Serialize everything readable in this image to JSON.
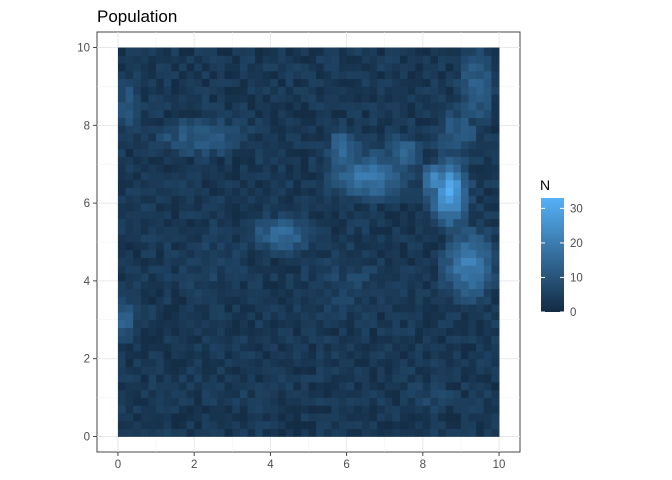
{
  "chart_data": {
    "type": "heatmap",
    "title": "Population",
    "xlabel": "",
    "ylabel": "",
    "xlim": [
      -0.55,
      10.55
    ],
    "ylim": [
      -0.4,
      10.4
    ],
    "x_ticks": [
      0,
      2,
      4,
      6,
      8,
      10
    ],
    "y_ticks": [
      0,
      2,
      4,
      6,
      8,
      10
    ],
    "x_tick_labels": [
      "0",
      "2",
      "4",
      "6",
      "8",
      "10"
    ],
    "y_tick_labels": [
      "0",
      "2",
      "4",
      "6",
      "8",
      "10"
    ],
    "grid": true,
    "grid_resolution": 0.2,
    "x_range": [
      0,
      10
    ],
    "y_range": [
      0,
      10
    ],
    "color_scale": {
      "low_color": "#132B43",
      "high_color": "#56B1F7",
      "min": 0,
      "max": 33
    },
    "regions": [
      {
        "center": [
          8.7,
          6.3
        ],
        "spread": [
          0.45,
          0.8
        ],
        "value": 30
      },
      {
        "center": [
          8.3,
          6.6
        ],
        "spread": [
          0.3,
          0.4
        ],
        "value": 26
      },
      {
        "center": [
          9.2,
          4.4
        ],
        "spread": [
          0.65,
          0.9
        ],
        "value": 20
      },
      {
        "center": [
          6.6,
          6.7
        ],
        "spread": [
          1.0,
          0.6
        ],
        "value": 19
      },
      {
        "center": [
          5.9,
          7.4
        ],
        "spread": [
          0.4,
          0.5
        ],
        "value": 17
      },
      {
        "center": [
          7.5,
          7.3
        ],
        "spread": [
          0.45,
          0.45
        ],
        "value": 16
      },
      {
        "center": [
          4.3,
          5.2
        ],
        "spread": [
          0.9,
          0.45
        ],
        "value": 15
      },
      {
        "center": [
          0.2,
          3.0
        ],
        "spread": [
          0.3,
          0.5
        ],
        "value": 16
      },
      {
        "center": [
          2.2,
          7.7
        ],
        "spread": [
          1.3,
          0.5
        ],
        "value": 12
      },
      {
        "center": [
          0.3,
          8.5
        ],
        "spread": [
          0.4,
          0.8
        ],
        "value": 10
      },
      {
        "center": [
          9.4,
          9.0
        ],
        "spread": [
          0.5,
          1.0
        ],
        "value": 13
      },
      {
        "center": [
          8.9,
          7.8
        ],
        "spread": [
          0.6,
          0.7
        ],
        "value": 12
      },
      {
        "center": [
          6.0,
          4.0
        ],
        "spread": [
          1.6,
          1.2
        ],
        "value": 6
      },
      {
        "center": [
          2.5,
          4.5
        ],
        "spread": [
          1.5,
          1.5
        ],
        "value": 5
      },
      {
        "center": [
          3.5,
          1.0
        ],
        "spread": [
          2.0,
          0.8
        ],
        "value": 4
      },
      {
        "center": [
          8.2,
          1.0
        ],
        "spread": [
          0.8,
          0.6
        ],
        "value": 6
      }
    ],
    "base_value": 3,
    "legend": {
      "title": "N",
      "ticks": [
        0,
        10,
        20,
        30
      ],
      "tick_labels": [
        "0",
        "10",
        "20",
        "30"
      ],
      "position": "right"
    }
  }
}
